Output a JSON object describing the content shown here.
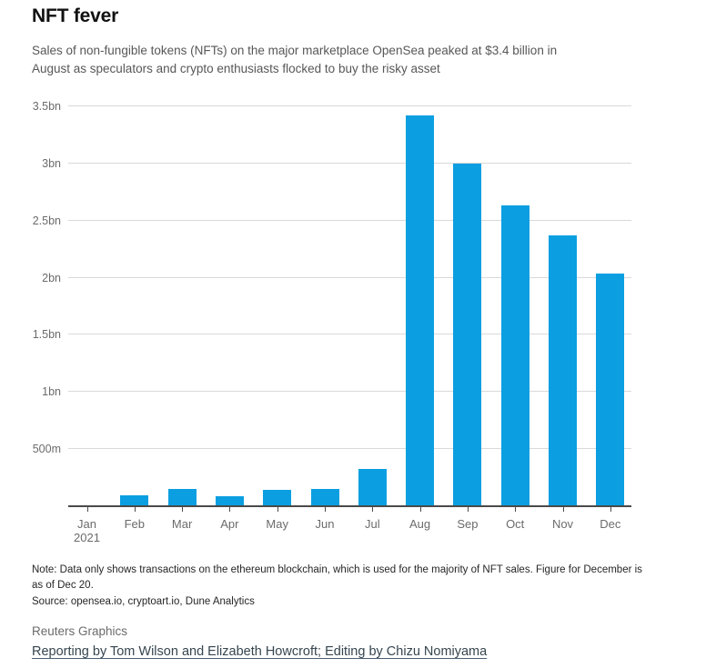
{
  "header": {
    "title": "NFT fever",
    "subtitle": "Sales of non-fungible tokens (NFTs) on the major marketplace OpenSea peaked at $3.4 billion in\nAugust as speculators and crypto enthusiasts flocked to buy the risky asset"
  },
  "chart_data": {
    "type": "bar",
    "title": "NFT fever",
    "unit": "USD",
    "categories": [
      "Jan",
      "Feb",
      "Mar",
      "Apr",
      "May",
      "Jun",
      "Jul",
      "Aug",
      "Sep",
      "Oct",
      "Nov",
      "Dec"
    ],
    "category_sublabels": [
      "2021",
      "",
      "",
      "",
      "",
      "",
      "",
      "",
      "",
      "",
      "",
      ""
    ],
    "values_millions": [
      10,
      95,
      150,
      90,
      140,
      150,
      330,
      3420,
      3000,
      2630,
      2370,
      2040
    ],
    "ylim": [
      0,
      3500
    ],
    "yticks": [
      {
        "value": 500,
        "label": "500m"
      },
      {
        "value": 1000,
        "label": "1bn"
      },
      {
        "value": 1500,
        "label": "1.5bn"
      },
      {
        "value": 2000,
        "label": "2bn"
      },
      {
        "value": 2500,
        "label": "2.5bn"
      },
      {
        "value": 3000,
        "label": "3bn"
      },
      {
        "value": 3500,
        "label": "3.5bn"
      }
    ],
    "grid": true,
    "legend": "none",
    "bar_color": "#0b9fe1",
    "axis_color": "#4a4a4a",
    "gridline_color": "#d9d9d9",
    "label_color": "#6b6b6b"
  },
  "notes": {
    "note": "Note: Data only shows transactions on the ethereum blockchain, which is used for the majority of NFT sales. Figure for December is\nas of Dec 20.",
    "source": "Source: opensea.io, cryptoart.io, Dune Analytics"
  },
  "footer": {
    "credit": "Reuters Graphics",
    "reporting": "Reporting by Tom Wilson and Elizabeth Howcroft; Editing by Chizu Nomiyama"
  }
}
